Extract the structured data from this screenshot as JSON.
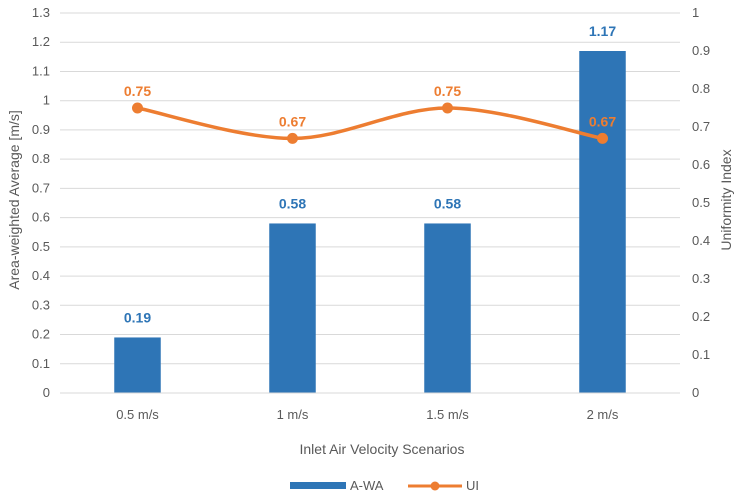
{
  "chart_data": {
    "type": "bar",
    "title": "",
    "categories": [
      "0.5 m/s",
      "1 m/s",
      "1.5 m/s",
      "2 m/s"
    ],
    "xlabel": "Inlet Air Velocity Scenarios",
    "ylabel": "Area-weighted Average [m/s]",
    "y2label": "Uniformity Index",
    "ylim": [
      0,
      1.3
    ],
    "y2lim": [
      0,
      1
    ],
    "yticks": [
      "0",
      "0.1",
      "0.2",
      "0.3",
      "0.4",
      "0.5",
      "0.6",
      "0.7",
      "0.8",
      "0.9",
      "1",
      "1.1",
      "1.2",
      "1.3"
    ],
    "y2ticks": [
      "0",
      "0.1",
      "0.2",
      "0.3",
      "0.4",
      "0.5",
      "0.6",
      "0.7",
      "0.8",
      "0.9",
      "1"
    ],
    "grid": true,
    "legend_position": "bottom",
    "series": [
      {
        "name": "A-WA",
        "type": "bar",
        "axis": "left",
        "color": "#2E75B6",
        "values": [
          0.19,
          0.58,
          0.58,
          1.17
        ],
        "labels": [
          "0.19",
          "0.58",
          "0.58",
          "1.17"
        ]
      },
      {
        "name": "UI",
        "type": "line",
        "axis": "right",
        "color": "#ED7D31",
        "values": [
          0.75,
          0.67,
          0.75,
          0.67
        ],
        "labels": [
          "0.75",
          "0.67",
          "0.75",
          "0.67"
        ]
      }
    ]
  }
}
